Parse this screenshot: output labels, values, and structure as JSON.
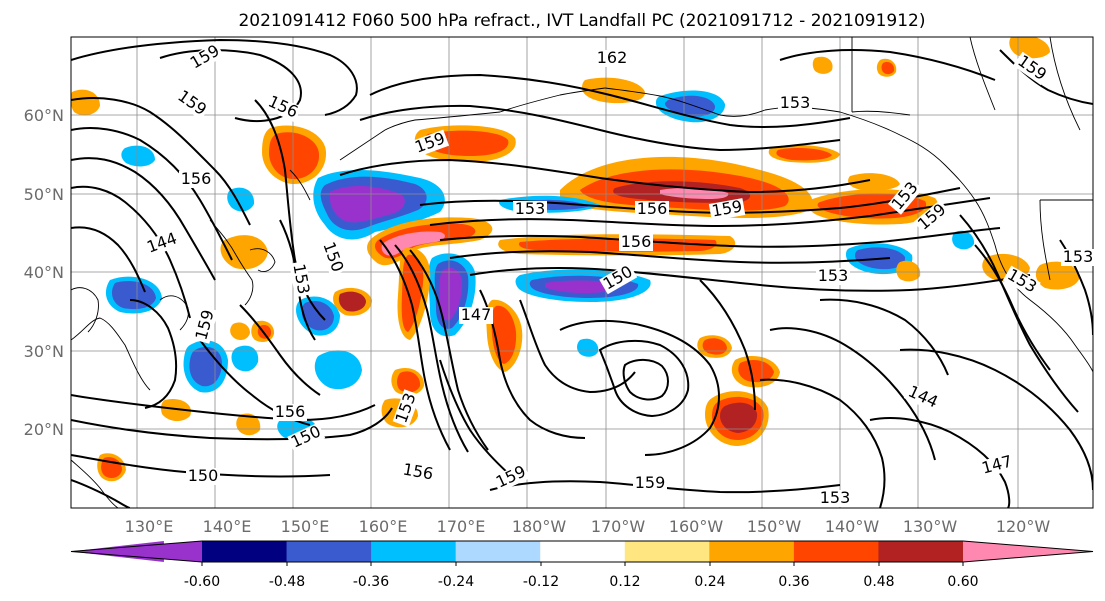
{
  "title": "2021091412 F060 500 hPa refract., IVT Landfall PC (2021091712 - 2021091912)",
  "map": {
    "lon_labels": [
      "130°E",
      "140°E",
      "150°E",
      "160°E",
      "170°E",
      "180°W",
      "170°W",
      "160°W",
      "150°W",
      "140°W",
      "130°W",
      "120°W"
    ],
    "lat_labels": [
      "20°N",
      "30°N",
      "40°N",
      "50°N",
      "60°N"
    ]
  },
  "contour_labels": [
    "159",
    "162",
    "156",
    "159",
    "156",
    "159",
    "153",
    "156",
    "159",
    "156",
    "153",
    "159",
    "150",
    "153",
    "150",
    "153",
    "144",
    "147",
    "159",
    "150",
    "156",
    "150",
    "156",
    "159",
    "153",
    "159",
    "159",
    "153",
    "153",
    "153",
    "144",
    "147",
    "153"
  ],
  "colorbar": {
    "colors": [
      "#9932cc",
      "#000080",
      "#3a5bd0",
      "#00bfff",
      "#add8ff",
      "#ffffff",
      "#ffe680",
      "#ffa500",
      "#ff4500",
      "#b22222",
      "#ff88b0"
    ],
    "tick_labels": [
      "-0.60",
      "-0.48",
      "-0.36",
      "-0.24",
      "-0.12",
      "0.12",
      "0.24",
      "0.36",
      "0.48",
      "0.60"
    ]
  },
  "colors": {
    "grid": "#8c8c8c",
    "tick_text": "#6b6b6b"
  }
}
